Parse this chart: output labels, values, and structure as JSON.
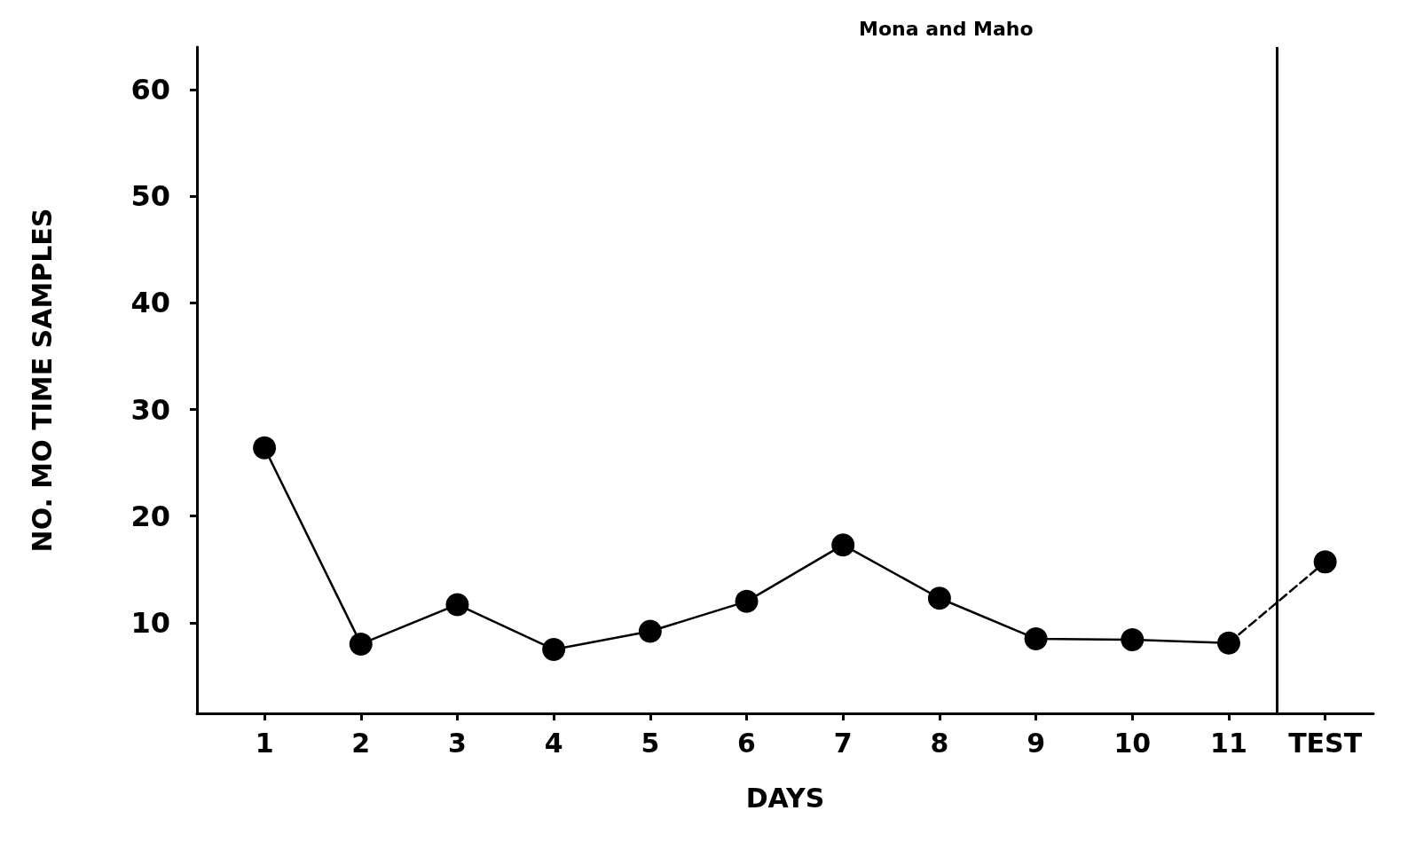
{
  "chart_data": {
    "type": "line",
    "title": "Mona and Maho",
    "xlabel": "DAYS",
    "ylabel": "NO. MO TIME SAMPLES",
    "series": [
      {
        "x": [
          1,
          2,
          3,
          4,
          5,
          6,
          7,
          8,
          9,
          10,
          11
        ],
        "values": [
          26.4,
          8.0,
          11.7,
          7.5,
          9.2,
          12.0,
          17.3,
          12.3,
          8.5,
          8.4,
          8.1
        ],
        "color": "#000000",
        "line_style": "solid"
      },
      {
        "x": [
          11,
          12
        ],
        "values": [
          8.1,
          15.7
        ],
        "color": "#000000",
        "line_style": "dashed"
      }
    ],
    "xlim": [
      0.3,
      12.5
    ],
    "xticks": [
      1,
      2,
      3,
      4,
      5,
      6,
      7,
      8,
      9,
      10,
      11,
      {
        "value": 12,
        "label": "TEST"
      }
    ],
    "ylim": [
      1.5,
      64
    ],
    "yticks": [
      10,
      20,
      30,
      40,
      50,
      60
    ],
    "ref_lines": [
      {
        "axis": "x",
        "value": 11.5,
        "color": "#000000"
      }
    ],
    "marker": "circle",
    "grid": false
  }
}
